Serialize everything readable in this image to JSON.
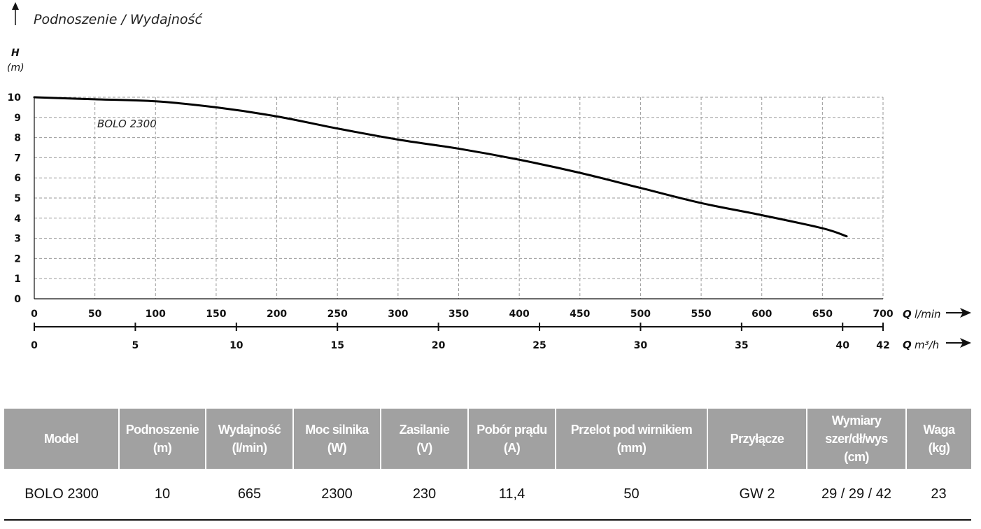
{
  "chart_data": {
    "type": "line",
    "title": "Podnoszenie / Wydajność",
    "ylabel": "H",
    "yunit": "(m)",
    "ylim": [
      0,
      10
    ],
    "yticks": [
      "0",
      "1",
      "2",
      "3",
      "4",
      "5",
      "6",
      "7",
      "8",
      "9",
      "10"
    ],
    "x_primary": {
      "label": "Q",
      "unit": "l/min",
      "range": [
        0,
        700
      ],
      "ticks": [
        "0",
        "50",
        "100",
        "150",
        "200",
        "250",
        "300",
        "350",
        "400",
        "450",
        "500",
        "550",
        "600",
        "650",
        "700"
      ]
    },
    "x_secondary": {
      "label": "Q",
      "unit": "m³/h",
      "range": [
        0,
        42
      ],
      "ticks": [
        "0",
        "5",
        "10",
        "15",
        "20",
        "25",
        "30",
        "35",
        "40",
        "42"
      ]
    },
    "grid": true,
    "series": [
      {
        "name": "BOLO 2300",
        "x": [
          0,
          50,
          100,
          150,
          200,
          250,
          300,
          350,
          400,
          450,
          500,
          550,
          600,
          650,
          670
        ],
        "y": [
          10,
          9.9,
          9.8,
          9.5,
          9.05,
          8.45,
          7.9,
          7.45,
          6.9,
          6.25,
          5.5,
          4.75,
          4.15,
          3.5,
          3.1
        ]
      }
    ]
  },
  "table": {
    "headers": [
      "Model",
      "Podnoszenie\n(m)",
      "Wydajność\n(l/min)",
      "Moc silnika\n(W)",
      "Zasilanie\n(V)",
      "Pobór prądu\n(A)",
      "Przelot pod wirnikiem\n(mm)",
      "Przyłącze",
      "Wymiary\nszer/dł/wys\n(cm)",
      "Waga\n(kg)"
    ],
    "rows": [
      [
        "BOLO 2300",
        "10",
        "665",
        "2300",
        "230",
        "11,4",
        "50",
        "GW 2",
        "29 / 29 / 42",
        "23"
      ]
    ]
  }
}
